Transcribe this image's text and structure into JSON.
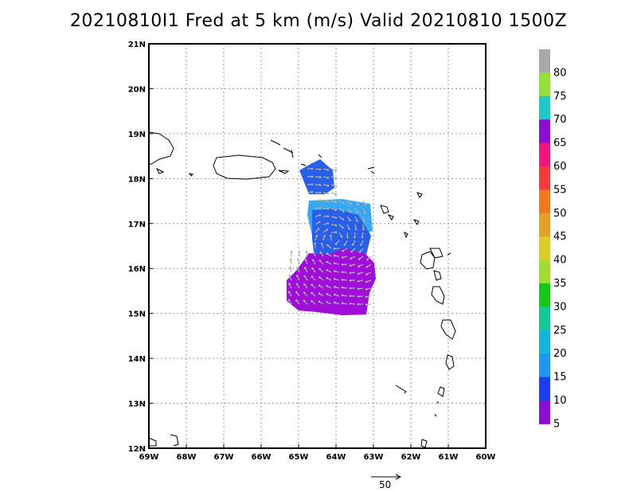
{
  "title": "20210810I1 Fred at 5 km (m/s) Valid 20210810 1500Z",
  "map": {
    "lon_range": [
      -69,
      -60
    ],
    "lat_range": [
      12,
      21
    ],
    "lon_labels": [
      "69W",
      "68W",
      "67W",
      "66W",
      "65W",
      "64W",
      "63W",
      "62W",
      "61W",
      "60W"
    ],
    "lat_labels": [
      "21N",
      "20N",
      "19N",
      "18N",
      "17N",
      "16N",
      "15N",
      "14N",
      "13N",
      "12N"
    ],
    "grid": true
  },
  "colorbar": {
    "labels": [
      "80",
      "75",
      "70",
      "65",
      "60",
      "55",
      "50",
      "45",
      "40",
      "35",
      "30",
      "25",
      "20",
      "15",
      "10",
      "5"
    ],
    "colors": [
      "#a8a8a8",
      "#96e03c",
      "#1fc8c8",
      "#8c0cd2",
      "#f0147c",
      "#f03c3c",
      "#f0781e",
      "#e6a028",
      "#dccc28",
      "#a0dc32",
      "#14c814",
      "#14c896",
      "#14b4dc",
      "#1e96f0",
      "#1e3cf0",
      "#8c0cd2"
    ]
  },
  "wind_field": {
    "colors": {
      "low": "#9f0fd8",
      "mid": "#2a5fe8",
      "high": "#38a8f0",
      "vector": "#b0b0b0"
    }
  },
  "reference_vector": {
    "label": "50"
  }
}
